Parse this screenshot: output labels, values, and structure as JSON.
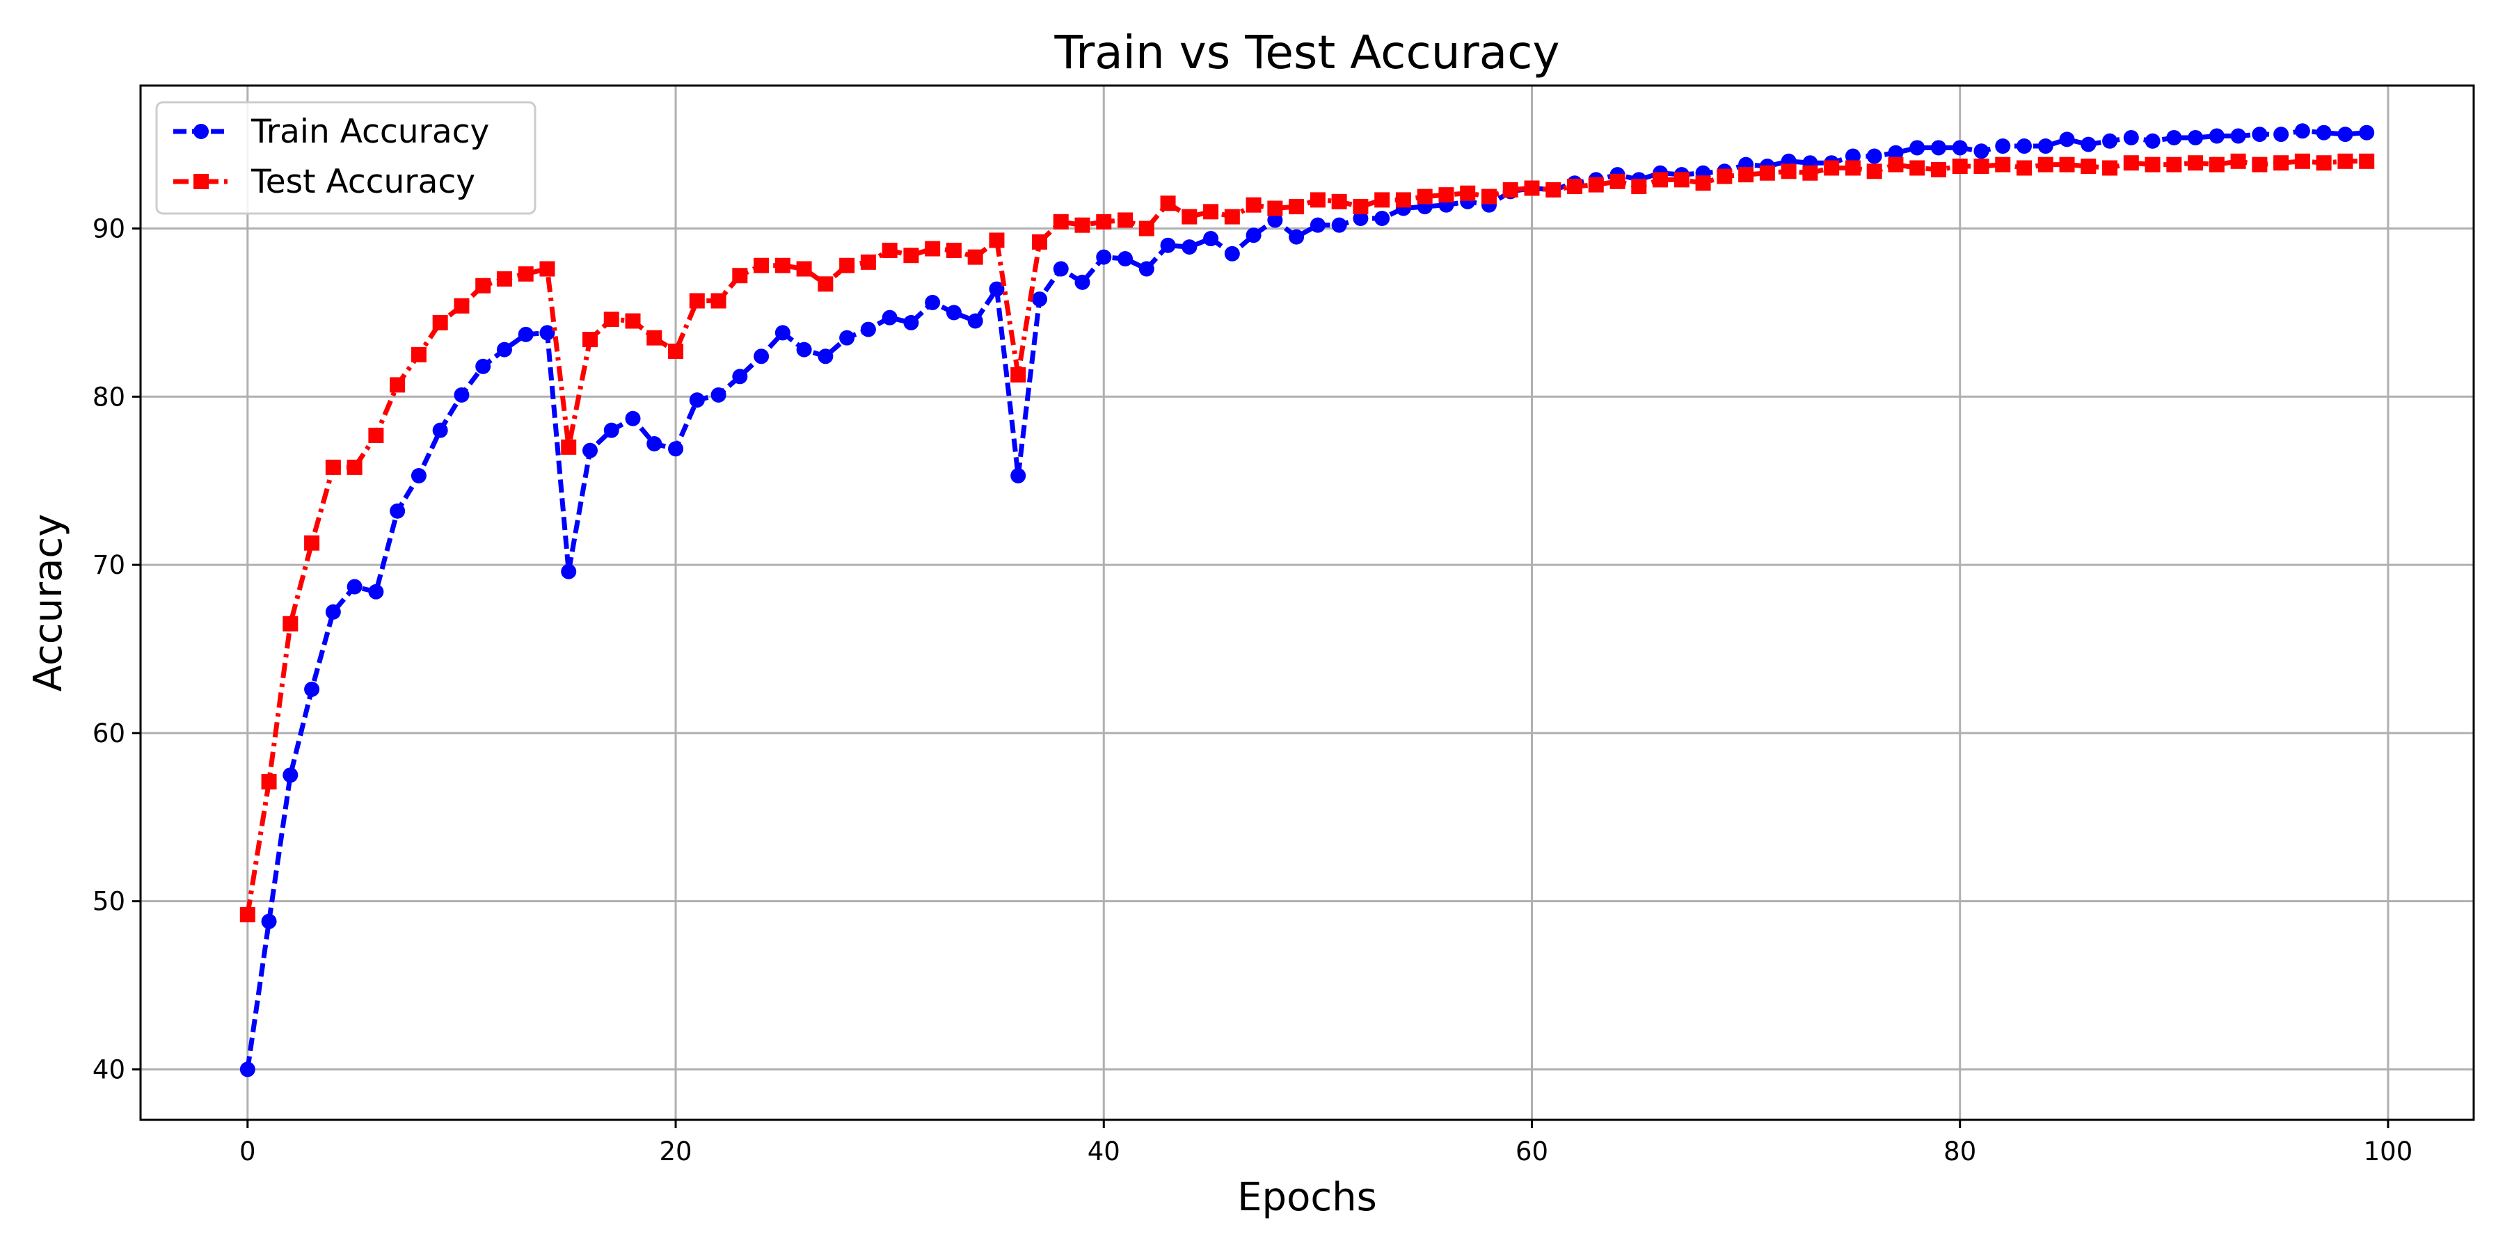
{
  "chart_data": {
    "type": "line",
    "title": "Train vs Test Accuracy",
    "xlabel": "Epochs",
    "ylabel": "Accuracy",
    "xlim": [
      -5,
      104
    ],
    "ylim": [
      37,
      98.5
    ],
    "xticks": [
      0,
      20,
      40,
      60,
      80,
      100
    ],
    "yticks": [
      40,
      50,
      60,
      70,
      80,
      90
    ],
    "grid": true,
    "legend_position": "top-left",
    "x": [
      0,
      1,
      2,
      3,
      4,
      5,
      6,
      7,
      8,
      9,
      10,
      11,
      12,
      13,
      14,
      15,
      16,
      17,
      18,
      19,
      20,
      21,
      22,
      23,
      24,
      25,
      26,
      27,
      28,
      29,
      30,
      31,
      32,
      33,
      34,
      35,
      36,
      37,
      38,
      39,
      40,
      41,
      42,
      43,
      44,
      45,
      46,
      47,
      48,
      49,
      50,
      51,
      52,
      53,
      54,
      55,
      56,
      57,
      58,
      59,
      60,
      61,
      62,
      63,
      64,
      65,
      66,
      67,
      68,
      69,
      70,
      71,
      72,
      73,
      74,
      75,
      76,
      77,
      78,
      79,
      80,
      81,
      82,
      83,
      84,
      85,
      86,
      87,
      88,
      89,
      90,
      91,
      92,
      93,
      94,
      95,
      96,
      97,
      98,
      99
    ],
    "series": [
      {
        "name": "Train Accuracy",
        "color": "#0000ff",
        "linestyle": "dashed",
        "marker": "circle",
        "values": [
          40.0,
          48.8,
          57.5,
          62.6,
          67.2,
          68.7,
          68.4,
          73.2,
          75.3,
          78.0,
          80.1,
          81.8,
          82.8,
          83.7,
          83.8,
          69.6,
          76.8,
          78.0,
          78.7,
          77.2,
          76.9,
          79.8,
          80.1,
          81.2,
          82.4,
          83.8,
          82.8,
          82.4,
          83.5,
          84.0,
          84.7,
          84.4,
          85.6,
          85.0,
          84.5,
          86.4,
          75.3,
          85.8,
          87.6,
          86.8,
          88.3,
          88.2,
          87.6,
          89.0,
          88.9,
          89.4,
          88.5,
          89.6,
          90.5,
          89.5,
          90.2,
          90.2,
          90.6,
          90.6,
          91.2,
          91.3,
          91.4,
          91.6,
          91.4,
          92.2,
          92.4,
          92.3,
          92.7,
          92.9,
          93.2,
          92.9,
          93.3,
          93.2,
          93.3,
          93.4,
          93.8,
          93.7,
          94.0,
          93.9,
          93.9,
          94.3,
          94.3,
          94.5,
          94.8,
          94.8,
          94.8,
          94.6,
          94.9,
          94.9,
          94.9,
          95.3,
          95.0,
          95.2,
          95.4,
          95.2,
          95.4,
          95.4,
          95.5,
          95.5,
          95.6,
          95.6,
          95.8,
          95.7,
          95.6,
          95.7
        ]
      },
      {
        "name": "Test Accuracy",
        "color": "#ff0000",
        "linestyle": "dashdot",
        "marker": "square",
        "values": [
          49.2,
          57.1,
          66.5,
          71.3,
          75.8,
          75.8,
          77.7,
          80.7,
          82.5,
          84.4,
          85.4,
          86.6,
          87.0,
          87.3,
          87.6,
          77.0,
          83.4,
          84.6,
          84.5,
          83.5,
          82.7,
          85.7,
          85.7,
          87.2,
          87.8,
          87.8,
          87.6,
          86.7,
          87.8,
          88.0,
          88.7,
          88.4,
          88.8,
          88.7,
          88.3,
          89.3,
          81.3,
          89.2,
          90.4,
          90.2,
          90.4,
          90.5,
          90.0,
          91.5,
          90.7,
          91.0,
          90.7,
          91.4,
          91.2,
          91.3,
          91.7,
          91.6,
          91.3,
          91.7,
          91.7,
          91.9,
          92.0,
          92.1,
          91.9,
          92.3,
          92.4,
          92.3,
          92.5,
          92.6,
          92.8,
          92.5,
          92.9,
          92.9,
          92.7,
          93.1,
          93.2,
          93.3,
          93.4,
          93.3,
          93.6,
          93.6,
          93.4,
          93.8,
          93.6,
          93.5,
          93.7,
          93.7,
          93.8,
          93.6,
          93.8,
          93.8,
          93.7,
          93.6,
          93.9,
          93.8,
          93.8,
          93.9,
          93.8,
          94.0,
          93.8,
          93.9,
          94.0,
          93.9,
          94.0,
          94.0
        ]
      }
    ]
  }
}
